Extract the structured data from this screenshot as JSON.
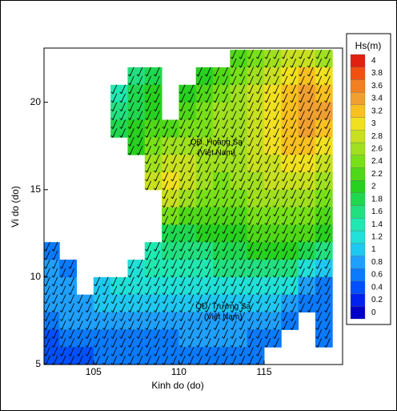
{
  "chart_data": {
    "type": "heatmap",
    "x_label": "Kinh do (do)",
    "y_label": "Vi do (do)",
    "xlim": [
      102.1,
      119.6
    ],
    "ylim": [
      5,
      23.1
    ],
    "xticks": [
      105,
      110,
      115
    ],
    "yticks": [
      5,
      10,
      15,
      20
    ],
    "x": [
      102.5,
      103.5,
      104.5,
      105.5,
      106.5,
      107.5,
      108.5,
      109.5,
      110.5,
      111.5,
      112.5,
      113.5,
      114.5,
      115.5,
      116.5,
      117.5,
      118.5
    ],
    "y": [
      22.5,
      21.5,
      20.5,
      19.5,
      18.5,
      17.5,
      16.5,
      15.5,
      14.5,
      13.5,
      12.5,
      11.5,
      10.5,
      9.5,
      8.5,
      7.5,
      6.5,
      5.5
    ],
    "z": [
      [
        null,
        null,
        null,
        null,
        null,
        null,
        null,
        null,
        null,
        null,
        null,
        2.2,
        2.4,
        2.6,
        2.8,
        2.8,
        2.6
      ],
      [
        null,
        null,
        null,
        null,
        null,
        1.6,
        1.8,
        null,
        null,
        2.0,
        2.2,
        2.4,
        2.6,
        2.8,
        3.0,
        3.2,
        3.0
      ],
      [
        null,
        null,
        null,
        null,
        1.4,
        1.8,
        2.0,
        null,
        2.0,
        2.2,
        2.4,
        2.6,
        2.8,
        3.0,
        3.2,
        3.4,
        3.2
      ],
      [
        null,
        null,
        null,
        null,
        1.6,
        1.8,
        2.0,
        null,
        2.2,
        2.4,
        2.6,
        2.6,
        2.8,
        3.0,
        3.2,
        3.4,
        3.4
      ],
      [
        null,
        null,
        null,
        null,
        1.8,
        2.0,
        2.2,
        2.2,
        2.4,
        2.4,
        2.6,
        2.6,
        2.8,
        3.0,
        3.2,
        3.4,
        3.2
      ],
      [
        null,
        null,
        null,
        null,
        null,
        2.0,
        2.4,
        2.6,
        2.6,
        2.6,
        2.6,
        2.6,
        2.8,
        3.0,
        3.2,
        3.2,
        3.0
      ],
      [
        null,
        null,
        null,
        null,
        null,
        null,
        2.6,
        2.8,
        2.8,
        2.6,
        2.6,
        2.6,
        2.8,
        2.8,
        3.0,
        3.0,
        2.8
      ],
      [
        null,
        null,
        null,
        null,
        null,
        null,
        2.8,
        3.0,
        2.8,
        2.6,
        2.4,
        2.6,
        2.6,
        2.8,
        2.8,
        2.8,
        2.6
      ],
      [
        null,
        null,
        null,
        null,
        null,
        null,
        null,
        2.8,
        2.6,
        2.4,
        2.4,
        2.4,
        2.6,
        2.6,
        2.6,
        2.6,
        2.4
      ],
      [
        null,
        null,
        null,
        null,
        null,
        null,
        null,
        2.4,
        2.2,
        2.2,
        2.2,
        2.2,
        2.4,
        2.4,
        2.4,
        2.4,
        2.2
      ],
      [
        null,
        null,
        null,
        null,
        null,
        null,
        null,
        1.8,
        1.8,
        2.0,
        2.0,
        2.0,
        2.2,
        2.2,
        2.2,
        2.2,
        2.0
      ],
      [
        0.6,
        null,
        null,
        null,
        null,
        null,
        1.4,
        1.6,
        1.6,
        1.6,
        1.8,
        1.8,
        2.0,
        2.0,
        2.0,
        1.8,
        1.6
      ],
      [
        0.8,
        0.6,
        null,
        null,
        null,
        1.2,
        1.4,
        1.4,
        1.4,
        1.4,
        1.6,
        1.6,
        1.6,
        1.6,
        1.6,
        1.2,
        1.0
      ],
      [
        0.8,
        0.8,
        null,
        1.0,
        1.2,
        1.2,
        1.2,
        1.2,
        1.2,
        1.2,
        1.2,
        1.2,
        1.2,
        1.2,
        1.2,
        0.8,
        0.6
      ],
      [
        0.8,
        0.8,
        0.8,
        1.0,
        1.0,
        1.0,
        1.0,
        1.0,
        1.0,
        1.0,
        1.0,
        1.0,
        1.0,
        1.0,
        0.8,
        0.6,
        0.6
      ],
      [
        0.6,
        0.8,
        0.8,
        0.8,
        0.8,
        0.8,
        0.8,
        0.8,
        0.8,
        0.8,
        0.8,
        0.8,
        0.8,
        0.8,
        0.6,
        null,
        0.6
      ],
      [
        0.4,
        0.6,
        0.6,
        0.6,
        0.6,
        0.6,
        0.6,
        0.6,
        0.8,
        0.8,
        0.8,
        0.8,
        0.6,
        0.6,
        null,
        null,
        0.6
      ],
      [
        0.4,
        0.4,
        0.4,
        0.6,
        0.6,
        0.6,
        0.6,
        0.6,
        0.6,
        0.6,
        0.6,
        0.6,
        0.6,
        null,
        null,
        null,
        null
      ]
    ],
    "colorbar": {
      "title": "Hs(m)",
      "ticks": [
        0,
        0.2,
        0.4,
        0.6,
        0.8,
        1,
        1.2,
        1.4,
        1.6,
        1.8,
        2,
        2.2,
        2.4,
        2.6,
        2.8,
        3,
        3.2,
        3.4,
        3.6,
        3.8,
        4
      ],
      "colors": [
        "#0000c8",
        "#0022ee",
        "#0050ff",
        "#0a7aff",
        "#1fa0ff",
        "#1ec8f0",
        "#20e0d8",
        "#20e8b0",
        "#22e080",
        "#20d850",
        "#28d020",
        "#50d818",
        "#78e018",
        "#a0e020",
        "#c8e020",
        "#f0e020",
        "#f8c020",
        "#f0a030",
        "#f08020",
        "#f05010",
        "#e02010"
      ]
    },
    "annotations": [
      {
        "text": "QĐ. Hoàng Sa",
        "x": 112.2,
        "y": 17.7
      },
      {
        "text": "(Việt Nam)",
        "x": 112.2,
        "y": 17.1
      },
      {
        "text": "QĐ. Trường Sa",
        "x": 112.6,
        "y": 8.3
      },
      {
        "text": "(Việt Nam)",
        "x": 112.6,
        "y": 7.7
      }
    ]
  }
}
